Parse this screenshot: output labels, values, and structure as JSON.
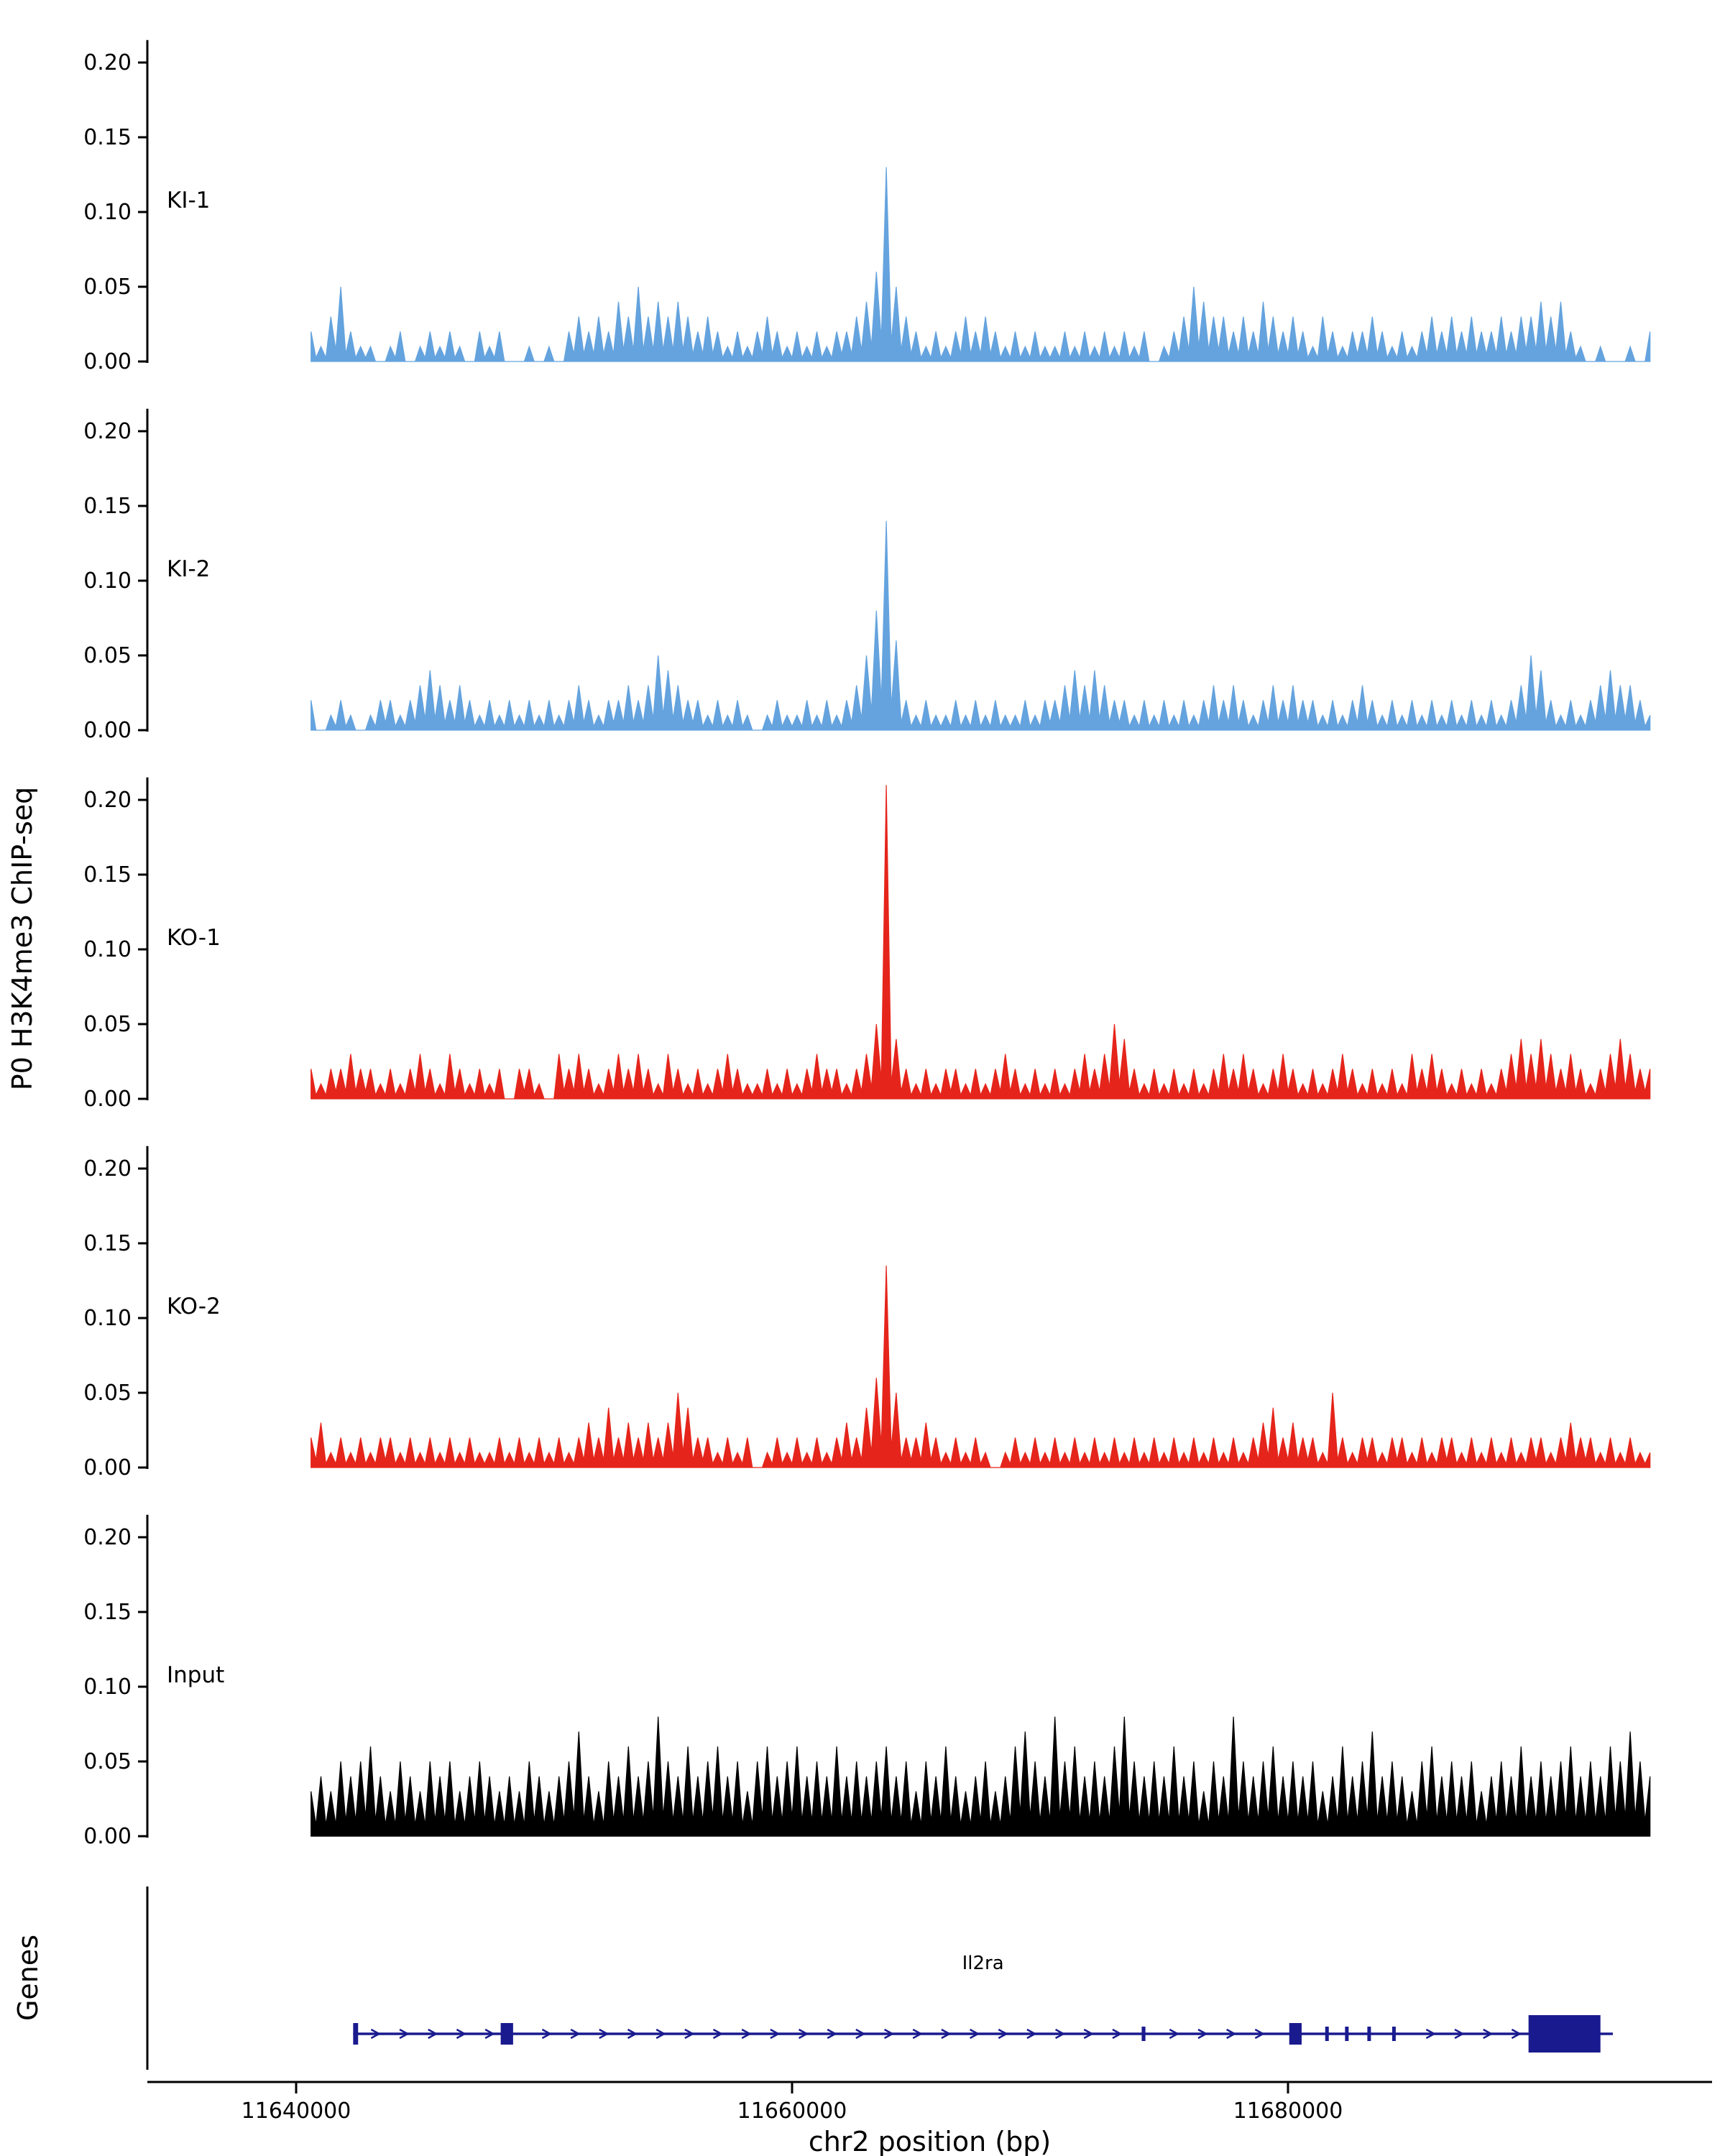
{
  "figure": {
    "y_axis_label": "P0 H3K4me3 ChIP-seq",
    "genes_label": "Genes"
  },
  "chart_data": {
    "type": "area",
    "title": "",
    "xlabel": "chr2 position (bp)",
    "ylabel": "P0 H3K4me3 ChIP-seq",
    "x_domain": [
      11634000,
      11697100
    ],
    "x_ticks": [
      11640000,
      11660000,
      11680000
    ],
    "x_tick_labels": [
      "11640000",
      "11660000",
      "11680000"
    ],
    "ylim": [
      0,
      0.215
    ],
    "yticks": [
      0,
      0.05,
      0.1,
      0.15,
      0.2
    ],
    "ytick_labels": [
      "0.00",
      "0.05",
      "0.10",
      "0.15",
      "0.20"
    ],
    "x_start": 11640600,
    "x_step": 400,
    "tracks": [
      {
        "name": "KI-1",
        "color": "#64A3DE",
        "values": [
          0.02,
          0.01,
          0.03,
          0.05,
          0.02,
          0.01,
          0.01,
          0,
          0.01,
          0.02,
          0,
          0.01,
          0.02,
          0.01,
          0.02,
          0.01,
          0,
          0.02,
          0.01,
          0.02,
          0,
          0,
          0.01,
          0,
          0.01,
          0,
          0.02,
          0.03,
          0.02,
          0.03,
          0.02,
          0.04,
          0.03,
          0.05,
          0.03,
          0.04,
          0.03,
          0.04,
          0.03,
          0.02,
          0.03,
          0.02,
          0.01,
          0.02,
          0.01,
          0.02,
          0.03,
          0.02,
          0.01,
          0.02,
          0.01,
          0.02,
          0.01,
          0.02,
          0.02,
          0.03,
          0.04,
          0.06,
          0.13,
          0.05,
          0.03,
          0.02,
          0.01,
          0.02,
          0.01,
          0.02,
          0.03,
          0.02,
          0.03,
          0.02,
          0.01,
          0.02,
          0.01,
          0.02,
          0.01,
          0.01,
          0.02,
          0.01,
          0.02,
          0.01,
          0.02,
          0.01,
          0.02,
          0.01,
          0.02,
          0,
          0.01,
          0.02,
          0.03,
          0.05,
          0.04,
          0.03,
          0.03,
          0.02,
          0.03,
          0.02,
          0.04,
          0.03,
          0.02,
          0.03,
          0.02,
          0.01,
          0.03,
          0.02,
          0.01,
          0.02,
          0.02,
          0.03,
          0.02,
          0.01,
          0.02,
          0.01,
          0.02,
          0.03,
          0.02,
          0.03,
          0.02,
          0.03,
          0.02,
          0.02,
          0.03,
          0.02,
          0.03,
          0.03,
          0.04,
          0.03,
          0.04,
          0.02,
          0.01,
          0,
          0.01,
          0,
          0,
          0.01,
          0,
          0.02
        ]
      },
      {
        "name": "KI-2",
        "color": "#64A3DE",
        "values": [
          0.02,
          0,
          0.01,
          0.02,
          0.01,
          0,
          0.01,
          0.02,
          0.02,
          0.01,
          0.02,
          0.03,
          0.04,
          0.03,
          0.02,
          0.03,
          0.02,
          0.01,
          0.02,
          0.01,
          0.02,
          0.01,
          0.02,
          0.01,
          0.02,
          0.01,
          0.02,
          0.03,
          0.02,
          0.01,
          0.02,
          0.02,
          0.03,
          0.02,
          0.03,
          0.05,
          0.04,
          0.03,
          0.02,
          0.02,
          0.01,
          0.02,
          0.01,
          0.02,
          0.01,
          0,
          0.01,
          0.02,
          0.01,
          0.01,
          0.02,
          0.01,
          0.02,
          0.01,
          0.02,
          0.03,
          0.05,
          0.08,
          0.14,
          0.06,
          0.02,
          0.01,
          0.02,
          0.01,
          0.01,
          0.02,
          0.01,
          0.02,
          0.01,
          0.02,
          0.01,
          0.01,
          0.02,
          0.01,
          0.02,
          0.02,
          0.03,
          0.04,
          0.03,
          0.04,
          0.03,
          0.02,
          0.02,
          0.01,
          0.02,
          0.01,
          0.02,
          0.01,
          0.02,
          0.01,
          0.02,
          0.03,
          0.02,
          0.03,
          0.02,
          0.01,
          0.02,
          0.03,
          0.02,
          0.03,
          0.02,
          0.02,
          0.01,
          0.02,
          0.01,
          0.02,
          0.03,
          0.02,
          0.01,
          0.02,
          0.01,
          0.02,
          0.01,
          0.02,
          0.01,
          0.02,
          0.01,
          0.02,
          0.01,
          0.02,
          0.01,
          0.02,
          0.03,
          0.05,
          0.04,
          0.02,
          0.01,
          0.02,
          0.01,
          0.02,
          0.03,
          0.04,
          0.03,
          0.03,
          0.02,
          0.01
        ]
      },
      {
        "name": "KO-1",
        "color": "#E5251B",
        "values": [
          0.02,
          0.01,
          0.02,
          0.02,
          0.03,
          0.02,
          0.02,
          0.01,
          0.02,
          0.01,
          0.02,
          0.03,
          0.02,
          0.01,
          0.03,
          0.02,
          0.01,
          0.02,
          0.01,
          0.02,
          0,
          0.02,
          0.02,
          0.01,
          0,
          0.03,
          0.02,
          0.03,
          0.02,
          0.01,
          0.02,
          0.03,
          0.02,
          0.03,
          0.02,
          0.01,
          0.03,
          0.02,
          0.01,
          0.02,
          0.01,
          0.02,
          0.03,
          0.02,
          0.01,
          0.01,
          0.02,
          0.01,
          0.02,
          0.01,
          0.02,
          0.03,
          0.02,
          0.02,
          0.01,
          0.02,
          0.03,
          0.05,
          0.21,
          0.04,
          0.02,
          0.01,
          0.02,
          0.01,
          0.02,
          0.02,
          0.01,
          0.02,
          0.01,
          0.02,
          0.03,
          0.02,
          0.01,
          0.02,
          0.01,
          0.02,
          0.01,
          0.02,
          0.03,
          0.02,
          0.03,
          0.05,
          0.04,
          0.02,
          0.01,
          0.02,
          0.01,
          0.02,
          0.01,
          0.02,
          0.01,
          0.02,
          0.03,
          0.02,
          0.03,
          0.02,
          0.01,
          0.02,
          0.03,
          0.02,
          0.01,
          0.02,
          0.01,
          0.02,
          0.03,
          0.02,
          0.01,
          0.02,
          0.01,
          0.02,
          0.01,
          0.03,
          0.02,
          0.03,
          0.02,
          0.01,
          0.02,
          0.01,
          0.02,
          0.01,
          0.02,
          0.03,
          0.04,
          0.03,
          0.04,
          0.03,
          0.02,
          0.03,
          0.02,
          0.01,
          0.02,
          0.03,
          0.04,
          0.03,
          0.02,
          0.02
        ]
      },
      {
        "name": "KO-2",
        "color": "#E5251B",
        "values": [
          0.02,
          0.03,
          0.01,
          0.02,
          0.01,
          0.02,
          0.01,
          0.02,
          0.02,
          0.01,
          0.02,
          0.01,
          0.02,
          0.01,
          0.02,
          0.01,
          0.02,
          0.01,
          0.01,
          0.02,
          0.01,
          0.02,
          0.01,
          0.02,
          0.01,
          0.02,
          0.01,
          0.02,
          0.03,
          0.02,
          0.04,
          0.02,
          0.03,
          0.02,
          0.03,
          0.02,
          0.03,
          0.05,
          0.04,
          0.02,
          0.02,
          0.01,
          0.02,
          0.01,
          0.02,
          0,
          0.01,
          0.02,
          0.01,
          0.02,
          0.01,
          0.02,
          0.01,
          0.02,
          0.03,
          0.02,
          0.04,
          0.06,
          0.135,
          0.05,
          0.02,
          0.02,
          0.03,
          0.02,
          0.01,
          0.02,
          0.01,
          0.02,
          0.01,
          0,
          0.01,
          0.02,
          0.01,
          0.02,
          0.01,
          0.02,
          0.01,
          0.02,
          0.01,
          0.02,
          0.01,
          0.02,
          0.01,
          0.02,
          0.01,
          0.02,
          0.01,
          0.02,
          0.01,
          0.02,
          0.01,
          0.02,
          0.01,
          0.02,
          0.01,
          0.02,
          0.03,
          0.04,
          0.02,
          0.03,
          0.02,
          0.02,
          0.01,
          0.05,
          0.02,
          0.01,
          0.02,
          0.02,
          0.01,
          0.02,
          0.02,
          0.01,
          0.02,
          0.01,
          0.02,
          0.02,
          0.01,
          0.02,
          0.01,
          0.02,
          0.01,
          0.02,
          0.01,
          0.02,
          0.02,
          0.01,
          0.02,
          0.03,
          0.02,
          0.02,
          0.01,
          0.02,
          0.01,
          0.02,
          0.01,
          0.01
        ]
      },
      {
        "name": "Input",
        "color": "#000000",
        "values": [
          0.03,
          0.04,
          0.03,
          0.05,
          0.04,
          0.05,
          0.06,
          0.04,
          0.03,
          0.05,
          0.04,
          0.03,
          0.05,
          0.04,
          0.05,
          0.03,
          0.04,
          0.05,
          0.04,
          0.03,
          0.04,
          0.03,
          0.05,
          0.04,
          0.03,
          0.04,
          0.05,
          0.07,
          0.04,
          0.03,
          0.05,
          0.04,
          0.06,
          0.04,
          0.05,
          0.08,
          0.05,
          0.04,
          0.06,
          0.04,
          0.05,
          0.06,
          0.04,
          0.05,
          0.03,
          0.05,
          0.06,
          0.04,
          0.05,
          0.06,
          0.04,
          0.05,
          0.04,
          0.06,
          0.04,
          0.05,
          0.04,
          0.05,
          0.06,
          0.04,
          0.05,
          0.03,
          0.05,
          0.04,
          0.06,
          0.04,
          0.03,
          0.04,
          0.05,
          0.03,
          0.04,
          0.06,
          0.07,
          0.05,
          0.04,
          0.08,
          0.05,
          0.06,
          0.04,
          0.05,
          0.04,
          0.06,
          0.08,
          0.05,
          0.04,
          0.05,
          0.04,
          0.06,
          0.04,
          0.05,
          0.03,
          0.05,
          0.04,
          0.08,
          0.05,
          0.04,
          0.05,
          0.06,
          0.04,
          0.05,
          0.04,
          0.05,
          0.03,
          0.04,
          0.06,
          0.04,
          0.05,
          0.07,
          0.04,
          0.05,
          0.04,
          0.03,
          0.05,
          0.06,
          0.04,
          0.05,
          0.04,
          0.05,
          0.03,
          0.04,
          0.05,
          0.04,
          0.06,
          0.04,
          0.05,
          0.04,
          0.05,
          0.06,
          0.04,
          0.05,
          0.04,
          0.06,
          0.05,
          0.07,
          0.05,
          0.04
        ]
      }
    ],
    "gene_track": {
      "label": "Genes",
      "gene": {
        "name": "Il2ra",
        "color": "#1A1A8F",
        "start": 11642300,
        "end": 11693100,
        "strand": "+",
        "exons": [
          {
            "start": 11642300,
            "end": 11642500,
            "h": "m"
          },
          {
            "start": 11648250,
            "end": 11648750,
            "h": "m"
          },
          {
            "start": 11674100,
            "end": 11674250,
            "h": "s"
          },
          {
            "start": 11680050,
            "end": 11680550,
            "h": "m"
          },
          {
            "start": 11681500,
            "end": 11681620,
            "h": "s"
          },
          {
            "start": 11682300,
            "end": 11682420,
            "h": "s"
          },
          {
            "start": 11683200,
            "end": 11683320,
            "h": "s"
          },
          {
            "start": 11684200,
            "end": 11684320,
            "h": "s"
          },
          {
            "start": 11689700,
            "end": 11692600,
            "h": "l"
          }
        ]
      }
    }
  }
}
